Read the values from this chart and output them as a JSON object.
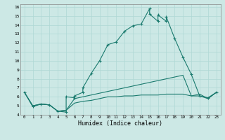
{
  "xlabel": "Humidex (Indice chaleur)",
  "bg_color": "#cce8e5",
  "line_color": "#1a7a6e",
  "grid_color": "#afd8d4",
  "xlim": [
    -0.5,
    23.5
  ],
  "ylim": [
    4,
    16.3
  ],
  "yticks": [
    4,
    5,
    6,
    7,
    8,
    9,
    10,
    11,
    12,
    13,
    14,
    15,
    16
  ],
  "xticks": [
    0,
    1,
    2,
    3,
    4,
    5,
    6,
    7,
    8,
    9,
    10,
    11,
    12,
    13,
    14,
    15,
    16,
    17,
    18,
    19,
    20,
    21,
    22,
    23
  ],
  "series1_x": [
    0,
    1,
    2,
    3,
    4,
    5,
    5,
    6,
    6,
    7,
    7,
    8,
    9,
    10,
    11,
    12,
    13,
    14,
    15,
    15,
    16,
    16,
    17,
    17,
    18,
    19,
    20,
    21,
    22,
    23
  ],
  "series1_y": [
    6.5,
    4.9,
    5.2,
    5.1,
    4.4,
    4.3,
    6.0,
    5.9,
    6.1,
    6.5,
    7.0,
    8.6,
    10.0,
    11.8,
    12.1,
    13.3,
    13.9,
    14.1,
    15.8,
    15.2,
    14.4,
    15.1,
    14.4,
    14.9,
    12.5,
    10.4,
    8.5,
    6.1,
    5.9,
    6.5
  ],
  "series2_x": [
    0,
    1,
    2,
    3,
    4,
    5,
    6,
    7,
    8,
    9,
    10,
    11,
    12,
    13,
    14,
    15,
    16,
    17,
    18,
    19,
    20,
    21,
    22,
    23
  ],
  "series2_y": [
    6.5,
    5.0,
    5.2,
    5.1,
    4.4,
    4.5,
    5.8,
    6.0,
    6.2,
    6.4,
    6.6,
    6.8,
    7.0,
    7.2,
    7.4,
    7.6,
    7.8,
    8.0,
    8.2,
    8.4,
    6.1,
    6.3,
    5.8,
    6.5
  ],
  "series3_x": [
    0,
    1,
    2,
    3,
    4,
    5,
    6,
    7,
    8,
    9,
    10,
    11,
    12,
    13,
    14,
    15,
    16,
    17,
    18,
    19,
    20,
    21,
    22,
    23
  ],
  "series3_y": [
    6.5,
    5.0,
    5.2,
    5.1,
    4.4,
    4.5,
    5.3,
    5.5,
    5.6,
    5.8,
    6.0,
    6.0,
    6.1,
    6.1,
    6.2,
    6.2,
    6.2,
    6.3,
    6.3,
    6.3,
    6.1,
    6.1,
    5.8,
    6.5
  ]
}
